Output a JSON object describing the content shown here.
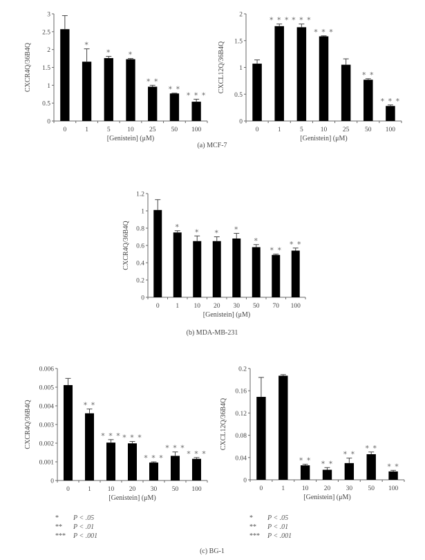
{
  "chart_data": [
    {
      "id": "a-left",
      "type": "bar",
      "panel": "(a) MCF-7",
      "title": "",
      "xlabel": "[Genistein] (μM)",
      "ylabel": "CXCR4Q/36B4Q",
      "categories": [
        "0",
        "1",
        "5",
        "10",
        "25",
        "50",
        "100"
      ],
      "values": [
        2.57,
        1.66,
        1.76,
        1.73,
        0.96,
        0.77,
        0.54
      ],
      "errors": [
        0.38,
        0.36,
        0.05,
        0.02,
        0.04,
        0.01,
        0.07
      ],
      "significance": [
        "",
        "*",
        "*",
        "*",
        "**",
        "**",
        "***"
      ],
      "ylim": [
        0,
        3
      ],
      "yticks": [
        "0",
        "0.5",
        "1",
        "1.5",
        "2",
        "2.5",
        "3"
      ],
      "bar_color": "#000000"
    },
    {
      "id": "a-right",
      "type": "bar",
      "panel": "(a) MCF-7",
      "title": "",
      "xlabel": "[Genistein] (μM)",
      "ylabel": "CXCL12Q/36B4Q",
      "categories": [
        "0",
        "1",
        "5",
        "10",
        "25",
        "50",
        "100"
      ],
      "values": [
        1.07,
        1.77,
        1.75,
        1.58,
        1.05,
        0.77,
        0.28
      ],
      "errors": [
        0.07,
        0.04,
        0.06,
        0.01,
        0.11,
        0.02,
        0.02
      ],
      "significance": [
        "",
        "***",
        "***",
        "***",
        "",
        "**",
        "***"
      ],
      "ylim": [
        0,
        2
      ],
      "yticks": [
        "0",
        "0.5",
        "1",
        "1.5",
        "2"
      ],
      "bar_color": "#000000"
    },
    {
      "id": "b",
      "type": "bar",
      "panel": "(b) MDA-MB-231",
      "title": "",
      "xlabel": "[Genistein] (μM)",
      "ylabel": "CXCR4Q/36B4Q",
      "categories": [
        "0",
        "1",
        "10",
        "20",
        "30",
        "50",
        "70",
        "100"
      ],
      "values": [
        1.01,
        0.75,
        0.65,
        0.65,
        0.68,
        0.58,
        0.49,
        0.54
      ],
      "errors": [
        0.12,
        0.02,
        0.06,
        0.05,
        0.06,
        0.03,
        0.01,
        0.03
      ],
      "significance": [
        "",
        "*",
        "*",
        "*",
        "*",
        "*",
        "**",
        "**"
      ],
      "ylim": [
        0,
        1.2
      ],
      "yticks": [
        "0",
        "0.2",
        "0.4",
        "0.6",
        "0.8",
        "1",
        "1.2"
      ],
      "bar_color": "#000000"
    },
    {
      "id": "c-left",
      "type": "bar",
      "panel": "(c) BG-1",
      "title": "",
      "xlabel": "[Genistein] (μM)",
      "ylabel": "CXCR4Q/36B4Q",
      "categories": [
        "0",
        "1",
        "10",
        "20",
        "30",
        "50",
        "100"
      ],
      "values": [
        0.00511,
        0.0036,
        0.00203,
        0.00199,
        0.00096,
        0.00132,
        0.00116
      ],
      "errors": [
        0.00036,
        0.00023,
        0.00016,
        0.0001,
        4e-05,
        0.00021,
        7e-05
      ],
      "significance": [
        "",
        "**",
        "***",
        "***",
        "***",
        "***",
        "***"
      ],
      "ylim": [
        0,
        0.006
      ],
      "yticks": [
        "0",
        "0.001",
        "0.002",
        "0.003",
        "0.004",
        "0.005",
        "0.006"
      ],
      "bar_color": "#000000"
    },
    {
      "id": "c-right",
      "type": "bar",
      "panel": "(c) BG-1",
      "title": "",
      "xlabel": "[Genistein] (μM)",
      "ylabel": "CXCL12Q/36B4Q",
      "categories": [
        "0",
        "1",
        "10",
        "20",
        "30",
        "50",
        "100"
      ],
      "values": [
        0.149,
        0.187,
        0.026,
        0.018,
        0.03,
        0.046,
        0.015
      ],
      "errors": [
        0.035,
        0.002,
        0.002,
        0.004,
        0.009,
        0.004,
        0.002
      ],
      "significance": [
        "",
        "",
        "**",
        "**",
        "**",
        "**",
        "**"
      ],
      "ylim": [
        0,
        0.2
      ],
      "yticks": [
        "0",
        "0.04",
        "0.08",
        "0.12",
        "0.16",
        "0.2"
      ],
      "bar_color": "#000000"
    }
  ],
  "captions": {
    "a": "(a)  MCF-7",
    "b": "(b)  MDA-MB-231",
    "c": "(c)  BG-1"
  },
  "legend": [
    {
      "symbol": "*",
      "text": "P < .05"
    },
    {
      "symbol": "**",
      "text": "P < .01"
    },
    {
      "symbol": "***",
      "text": "P < .001"
    }
  ]
}
